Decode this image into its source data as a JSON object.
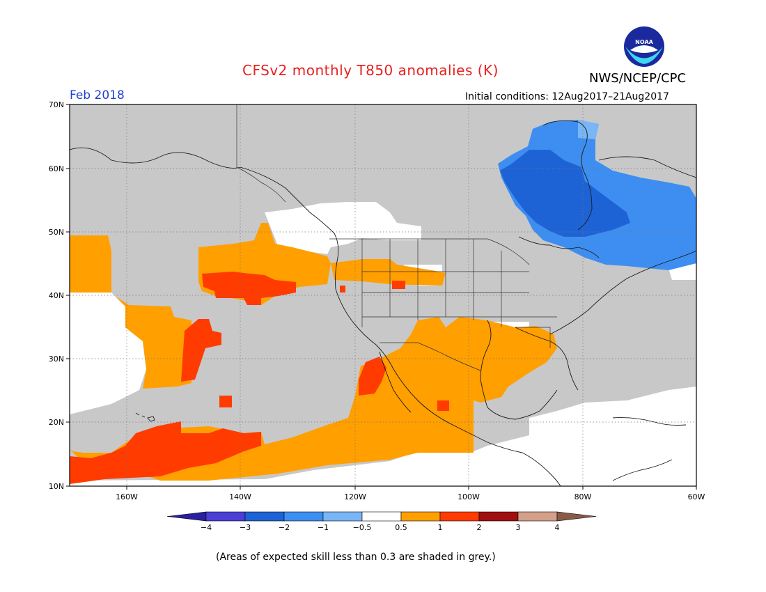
{
  "title": "CFSv2 monthly T850 anomalies (K)",
  "agency": "NWS/NCEP/CPC",
  "logo_text": "NOAA",
  "period": "Feb 2018",
  "initial_conditions": "Initial conditions: 12Aug2017–21Aug2017",
  "note": "(Areas of expected skill less than 0.3 are shaded in grey.)",
  "lat_labels": [
    "70N",
    "60N",
    "50N",
    "40N",
    "30N",
    "20N",
    "10N"
  ],
  "lon_labels": [
    "160W",
    "140W",
    "120W",
    "100W",
    "80W",
    "60W"
  ],
  "colorbar": {
    "labels": [
      "−4",
      "−3",
      "−2",
      "−1",
      "−0.5",
      "0.5",
      "1",
      "2",
      "3",
      "4"
    ],
    "colors": [
      "#2a1f9e",
      "#4a40d6",
      "#1e63d6",
      "#3d8ef0",
      "#78b6f5",
      "#ffffff",
      "#ff9f00",
      "#ff3b00",
      "#a01010",
      "#d4a08a",
      "#8a5a48"
    ]
  },
  "colors": {
    "grey_low_skill": "#c8c8c8",
    "warm_weak": "#ff9f00",
    "warm_strong": "#ff3b00",
    "cool_weak": "#3d8ef0",
    "cool_strong": "#1e63d6",
    "cool_light": "#78b6f5"
  }
}
